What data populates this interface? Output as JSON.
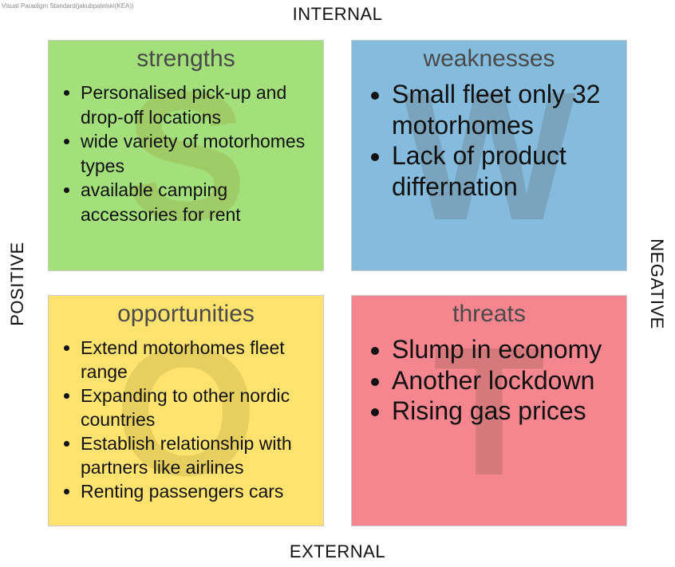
{
  "watermark": "Visual Paradigm Standard(jakubpatelski(KEA))",
  "axes": {
    "top": "INTERNAL",
    "bottom": "EXTERNAL",
    "left": "POSITIVE",
    "right": "NEGATIVE"
  },
  "quadrants": {
    "strengths": {
      "title": "strengths",
      "letter": "S",
      "color": "#a3e07c",
      "letter_color": "#9a9a35",
      "items": [
        "Personalised pick-up and drop-off locations",
        "wide variety of motorhomes types",
        "available camping accessories for rent"
      ]
    },
    "weaknesses": {
      "title": "weaknesses",
      "letter": "W",
      "color": "#85bcdd",
      "letter_color": "#606a70",
      "items": [
        "Small fleet only 32 motorhomes",
        "Lack of product differnation"
      ]
    },
    "opportunities": {
      "title": "opportunities",
      "letter": "O",
      "color": "#ffe36e",
      "letter_color": "#a89a3c",
      "items": [
        "Extend motorhomes fleet range",
        "Expanding to other nordic countries",
        "Establish relationship with partners like airlines",
        "Renting passengers cars"
      ]
    },
    "threats": {
      "title": "threats",
      "letter": "T",
      "color": "#f5868f",
      "letter_color": "#8a5a52",
      "items": [
        "Slump in economy",
        "Another lockdown",
        "Rising gas prices"
      ]
    }
  }
}
